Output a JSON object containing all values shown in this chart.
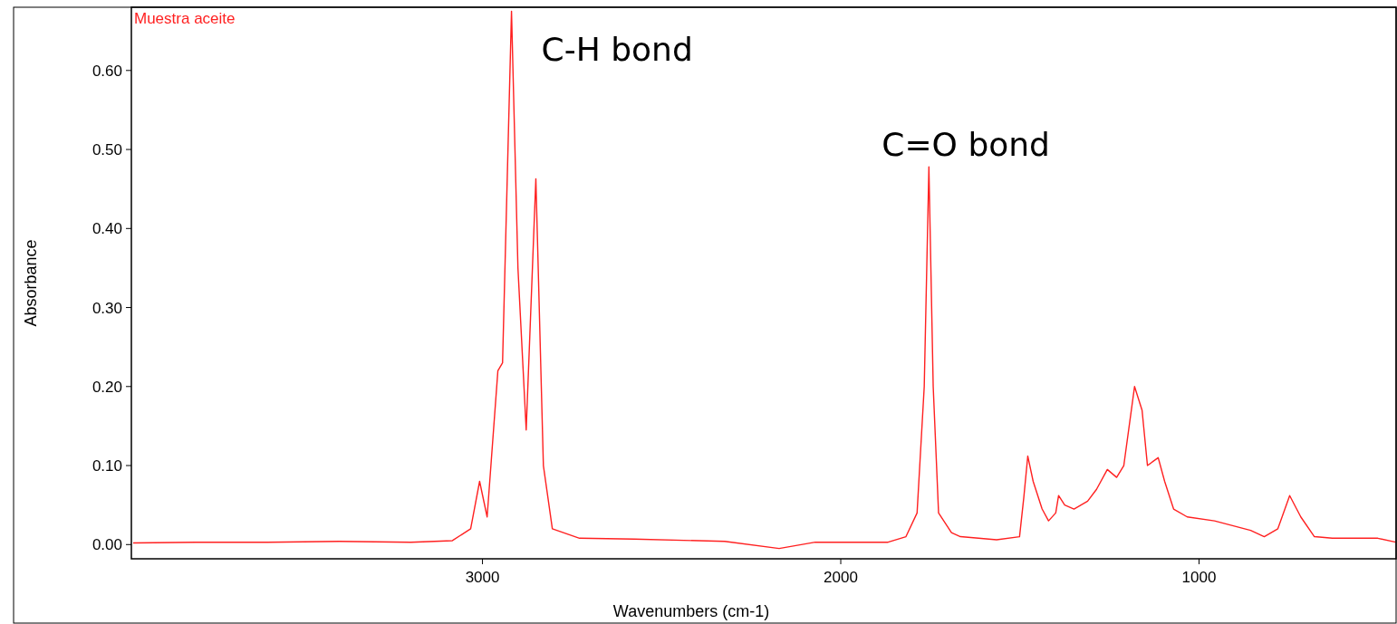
{
  "chart_data": {
    "type": "line",
    "xlabel": "Wavenumbers (cm-1)",
    "ylabel": "Absorbance",
    "xlim": [
      3980,
      450
    ],
    "xticks": [
      3000,
      2000,
      1000
    ],
    "ylim": [
      -0.018,
      0.68
    ],
    "yticks": [
      {
        "value": 0,
        "label": "0.00"
      },
      {
        "value": 0.1,
        "label": "0.10"
      },
      {
        "value": 0.2,
        "label": "0.20"
      },
      {
        "value": 0.3,
        "label": "0.30"
      },
      {
        "value": 0.4,
        "label": "0.40"
      },
      {
        "value": 0.5,
        "label": "0.50"
      },
      {
        "value": 0.6,
        "label": "0.60"
      }
    ],
    "grid": false,
    "legend": "top left",
    "line_style": "solid",
    "annotations": [
      {
        "text": "C-H bond",
        "x": 2919,
        "y": 0.675
      },
      {
        "text": "C=O bond",
        "x": 1754,
        "y": 0.478
      }
    ],
    "series": [
      {
        "name": "Muestra aceite",
        "color": "#ff2020",
        "x": [
          3975,
          3800,
          3600,
          3400,
          3200,
          3084,
          3033,
          3008,
          2987,
          2957,
          2944,
          2919,
          2901,
          2878,
          2851,
          2830,
          2805,
          2729,
          2577,
          2324,
          2172,
          2071,
          1868,
          1818,
          1787,
          1767,
          1754,
          1742,
          1727,
          1691,
          1666,
          1565,
          1501,
          1489,
          1478,
          1463,
          1438,
          1420,
          1400,
          1392,
          1375,
          1349,
          1311,
          1286,
          1256,
          1230,
          1210,
          1180,
          1159,
          1144,
          1129,
          1114,
          1096,
          1071,
          1033,
          957,
          856,
          818,
          780,
          747,
          716,
          678,
          628,
          501,
          451
        ],
        "values": [
          0.002,
          0.003,
          0.003,
          0.004,
          0.003,
          0.005,
          0.02,
          0.08,
          0.035,
          0.22,
          0.23,
          0.675,
          0.35,
          0.145,
          0.463,
          0.1,
          0.02,
          0.008,
          0.007,
          0.004,
          -0.005,
          0.003,
          0.003,
          0.01,
          0.04,
          0.2,
          0.478,
          0.2,
          0.04,
          0.015,
          0.01,
          0.006,
          0.01,
          0.06,
          0.112,
          0.08,
          0.045,
          0.03,
          0.04,
          0.062,
          0.05,
          0.045,
          0.055,
          0.07,
          0.095,
          0.085,
          0.1,
          0.2,
          0.17,
          0.1,
          0.105,
          0.11,
          0.08,
          0.045,
          0.035,
          0.03,
          0.018,
          0.01,
          0.02,
          0.062,
          0.035,
          0.01,
          0.008,
          0.008,
          0.003
        ]
      }
    ]
  }
}
